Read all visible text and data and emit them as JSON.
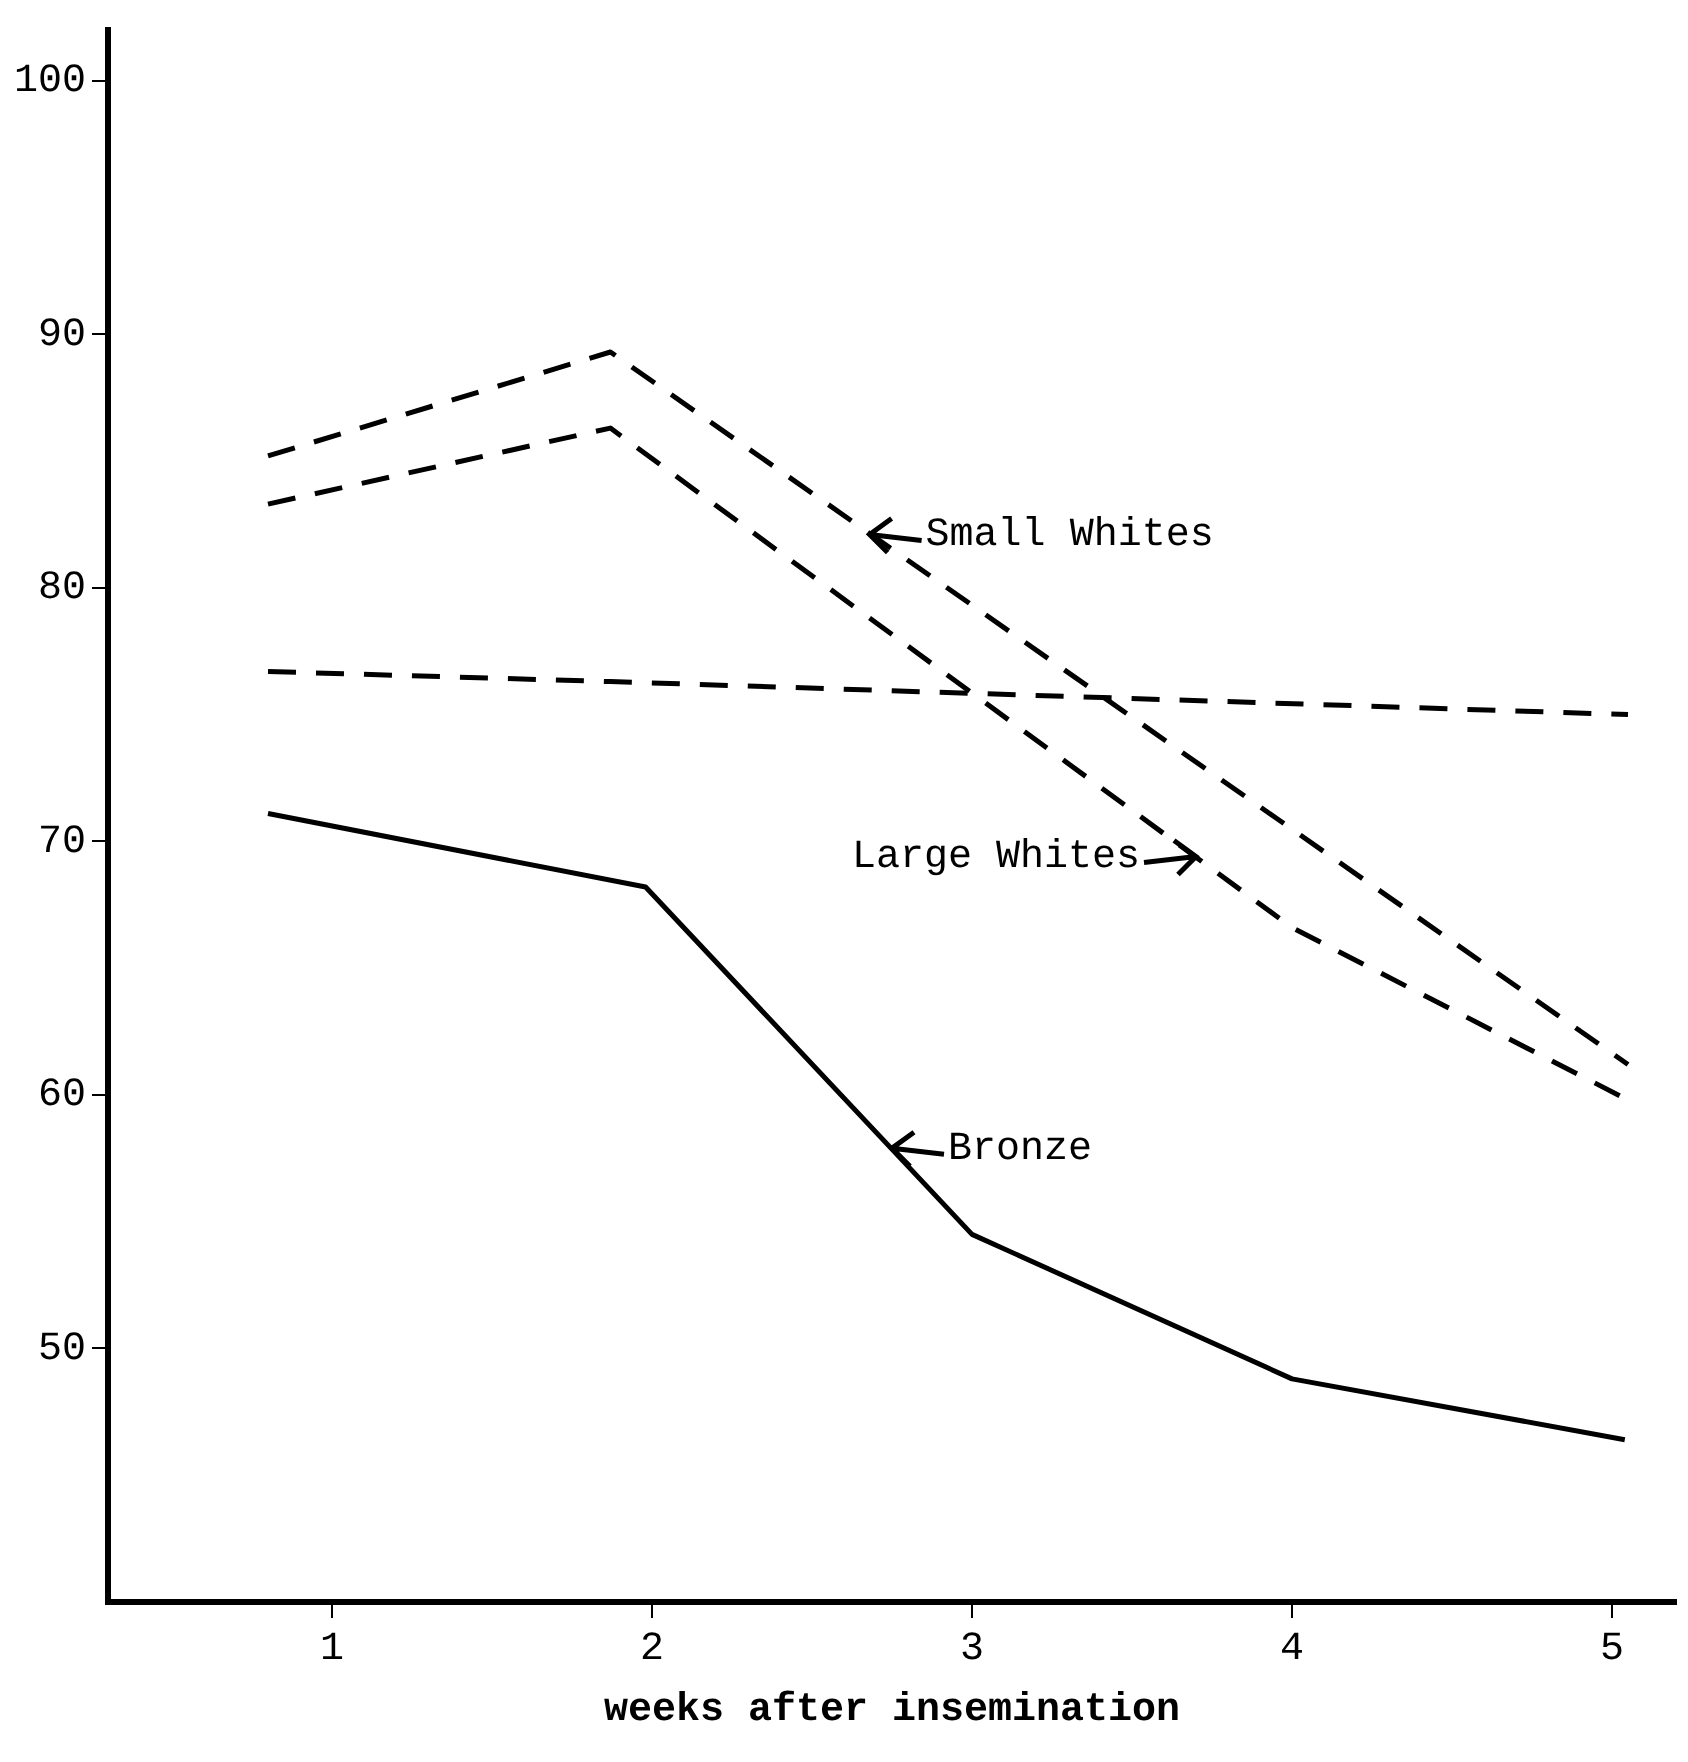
{
  "chart_data": {
    "type": "line",
    "xlabel": "weeks after insemination",
    "xlim": [
      0.3,
      5.2
    ],
    "xticks": [
      1,
      2,
      3,
      4,
      5
    ],
    "ylim": [
      40,
      102
    ],
    "yticks": [
      50,
      60,
      70,
      80,
      90,
      100
    ],
    "grid": false,
    "legend": false,
    "marker": "none",
    "series": [
      {
        "color": "#000000",
        "line_style": "dashed",
        "x": [
          0.8,
          1.87,
          5.05
        ],
        "values": [
          85.2,
          89.3,
          61.2
        ]
      },
      {
        "color": "#000000",
        "line_style": "dashed",
        "x": [
          0.8,
          1.87,
          4.0,
          5.05
        ],
        "values": [
          83.3,
          86.3,
          66.6,
          59.8
        ]
      },
      {
        "color": "#000000",
        "line_style": "dashed",
        "x": [
          0.8,
          1.87,
          5.05
        ],
        "values": [
          76.7,
          76.3,
          75.0
        ]
      },
      {
        "color": "#000000",
        "line_style": "solid",
        "x": [
          0.8,
          1.98,
          3.0,
          4.0,
          5.04
        ],
        "values": [
          71.1,
          68.2,
          54.5,
          48.8,
          46.4
        ]
      }
    ],
    "annotations": [
      {
        "text": "Small Whites",
        "x": 2.68,
        "y": 82.1
      },
      {
        "text": "Large Whites",
        "x": 3.7,
        "y": 69.4
      },
      {
        "text": "Bronze",
        "x": 2.75,
        "y": 57.9
      }
    ]
  }
}
